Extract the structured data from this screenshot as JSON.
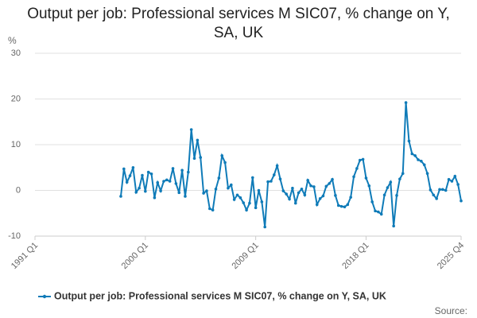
{
  "chart_data": {
    "type": "line",
    "title": "Output per job: Professional services M SIC07, % change on Y, SA, UK",
    "y_label": "%",
    "source": "Source:",
    "categories": [
      "1991 Q1",
      null,
      null,
      null,
      null,
      null,
      null,
      null,
      null,
      null,
      null,
      null,
      null,
      null,
      null,
      null,
      null,
      null,
      null,
      null,
      null,
      null,
      null,
      null,
      null,
      null,
      null,
      null,
      null,
      null,
      null,
      null,
      null,
      null,
      null,
      null,
      "2000 Q1",
      null,
      null,
      null,
      null,
      null,
      null,
      null,
      null,
      null,
      null,
      null,
      null,
      null,
      null,
      null,
      null,
      null,
      null,
      null,
      null,
      null,
      null,
      null,
      null,
      null,
      null,
      null,
      null,
      null,
      null,
      null,
      null,
      null,
      null,
      null,
      "2009 Q1",
      null,
      null,
      null,
      null,
      null,
      null,
      null,
      null,
      null,
      null,
      null,
      null,
      null,
      null,
      null,
      null,
      null,
      null,
      null,
      null,
      null,
      null,
      null,
      null,
      null,
      null,
      null,
      null,
      null,
      null,
      null,
      null,
      null,
      null,
      null,
      "2018 Q1",
      null,
      null,
      null,
      null,
      null,
      null,
      null,
      null,
      null,
      null,
      null,
      null,
      null,
      null,
      null,
      null,
      null,
      null,
      null,
      null,
      null,
      null,
      null,
      null,
      null,
      null,
      null,
      null,
      null,
      null,
      "2025 Q4"
    ],
    "series": [
      {
        "name": "Output per job: Professional services M SIC07, % change on Y, SA, UK",
        "color": "#0f7bb8",
        "values": [
          null,
          null,
          null,
          null,
          null,
          null,
          null,
          null,
          null,
          null,
          null,
          null,
          null,
          null,
          null,
          null,
          null,
          null,
          null,
          null,
          null,
          null,
          null,
          null,
          null,
          null,
          null,
          null,
          -1.3,
          4.7,
          1.8,
          3.2,
          5.0,
          -0.4,
          0.5,
          3.3,
          -0.2,
          4.0,
          3.6,
          -1.6,
          1.7,
          -0.1,
          2.0,
          2.3,
          2.0,
          4.8,
          1.5,
          -0.5,
          4.4,
          -1.3,
          4.0,
          13.3,
          7.0,
          11.0,
          7.2,
          -0.6,
          -0.1,
          -4.0,
          -4.3,
          0.3,
          2.7,
          7.6,
          6.1,
          0.5,
          1.2,
          -2.0,
          -1.0,
          -1.6,
          -2.7,
          -4.3,
          -2.8,
          2.8,
          -3.8,
          0.0,
          -2.5,
          -8.0,
          1.9,
          2.0,
          3.4,
          5.4,
          2.5,
          -0.1,
          -0.8,
          -1.9,
          0.5,
          -2.8,
          -0.5,
          0.3,
          -1.0,
          2.2,
          1.0,
          0.8,
          -3.1,
          -1.8,
          -1.2,
          0.9,
          1.5,
          2.4,
          -1.1,
          -3.3,
          -3.5,
          -3.6,
          -3.1,
          -1.5,
          3.0,
          4.8,
          6.6,
          6.8,
          2.7,
          1.0,
          -2.5,
          -4.5,
          -4.7,
          -5.2,
          -1.0,
          0.6,
          1.8,
          -7.8,
          -1.1,
          2.5,
          3.7,
          19.2,
          10.8,
          8.0,
          7.6,
          6.7,
          6.4,
          5.6,
          3.7,
          0.1,
          -1.0,
          -1.8,
          0.2,
          0.2,
          0.0,
          2.4,
          2.0,
          3.1,
          1.3,
          -2.3
        ]
      }
    ],
    "ylim": [
      -10,
      30
    ],
    "yticks": [
      -10,
      0,
      10,
      20,
      30
    ],
    "grid": true,
    "legend": "bottom"
  }
}
